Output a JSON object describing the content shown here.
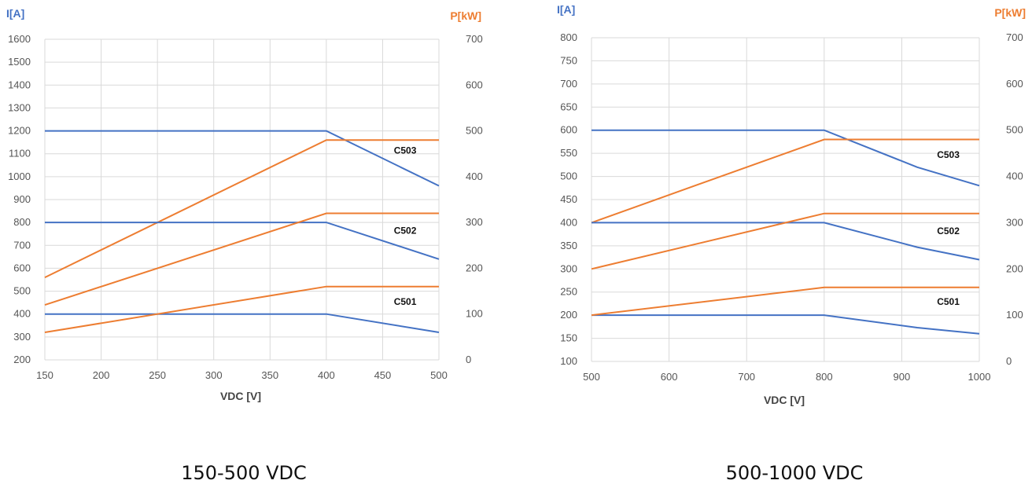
{
  "colors": {
    "current": "#4472C4",
    "power": "#ED7D31",
    "grid": "#d9d9d9"
  },
  "chart_data": [
    {
      "type": "line",
      "caption": "150-500 VDC",
      "xlabel": "VDC [V]",
      "ylabel_left": "I[A]",
      "ylabel_right": "P[kW]",
      "xlim": [
        150,
        500
      ],
      "xticks": [
        150,
        200,
        250,
        300,
        350,
        400,
        450,
        500
      ],
      "ylim_left": [
        200,
        1600
      ],
      "yticks_left": [
        200,
        300,
        400,
        500,
        600,
        700,
        800,
        900,
        1000,
        1100,
        1200,
        1300,
        1400,
        1500,
        1600
      ],
      "ylim_right": [
        0,
        700
      ],
      "yticks_right": [
        0,
        100,
        200,
        300,
        400,
        500,
        600,
        700
      ],
      "grid": true,
      "series": [
        {
          "name": "C503",
          "axis": "left",
          "kind": "current",
          "x": [
            150,
            400,
            500
          ],
          "y": [
            1200,
            1200,
            960
          ]
        },
        {
          "name": "C503",
          "axis": "right",
          "kind": "power",
          "x": [
            150,
            400,
            500
          ],
          "y": [
            180,
            480,
            480
          ]
        },
        {
          "name": "C502",
          "axis": "left",
          "kind": "current",
          "x": [
            150,
            400,
            500
          ],
          "y": [
            800,
            800,
            640
          ]
        },
        {
          "name": "C502",
          "axis": "right",
          "kind": "power",
          "x": [
            150,
            400,
            500
          ],
          "y": [
            120,
            320,
            320
          ]
        },
        {
          "name": "C501",
          "axis": "left",
          "kind": "current",
          "x": [
            150,
            400,
            500
          ],
          "y": [
            400,
            400,
            320
          ]
        },
        {
          "name": "C501",
          "axis": "right",
          "kind": "power",
          "x": [
            150,
            400,
            500
          ],
          "y": [
            60,
            160,
            160
          ]
        }
      ],
      "annotations": [
        {
          "text": "C503",
          "x": 470,
          "y_left": 1100
        },
        {
          "text": "C502",
          "x": 470,
          "y_left": 750
        },
        {
          "text": "C501",
          "x": 470,
          "y_left": 440
        }
      ]
    },
    {
      "type": "line",
      "caption": "500-1000 VDC",
      "xlabel": "VDC [V]",
      "ylabel_left": "I[A]",
      "ylabel_right": "P[kW]",
      "xlim": [
        500,
        1000
      ],
      "xticks": [
        500,
        600,
        700,
        800,
        900,
        1000
      ],
      "ylim_left": [
        100,
        800
      ],
      "yticks_left": [
        100,
        150,
        200,
        250,
        300,
        350,
        400,
        450,
        500,
        550,
        600,
        650,
        700,
        750,
        800
      ],
      "ylim_right": [
        0,
        700
      ],
      "yticks_right": [
        0,
        100,
        200,
        300,
        400,
        500,
        600,
        700
      ],
      "grid": true,
      "series": [
        {
          "name": "C503",
          "axis": "left",
          "kind": "current",
          "x": [
            500,
            800,
            920,
            1000
          ],
          "y": [
            600,
            600,
            520,
            480
          ]
        },
        {
          "name": "C503",
          "axis": "right",
          "kind": "power",
          "x": [
            500,
            800,
            1000
          ],
          "y": [
            300,
            480,
            480
          ]
        },
        {
          "name": "C502",
          "axis": "left",
          "kind": "current",
          "x": [
            500,
            800,
            920,
            1000
          ],
          "y": [
            400,
            400,
            347,
            320
          ]
        },
        {
          "name": "C502",
          "axis": "right",
          "kind": "power",
          "x": [
            500,
            800,
            1000
          ],
          "y": [
            200,
            320,
            320
          ]
        },
        {
          "name": "C501",
          "axis": "left",
          "kind": "current",
          "x": [
            500,
            800,
            920,
            1000
          ],
          "y": [
            200,
            200,
            173,
            160
          ]
        },
        {
          "name": "C501",
          "axis": "right",
          "kind": "power",
          "x": [
            500,
            800,
            1000
          ],
          "y": [
            100,
            160,
            160
          ]
        }
      ],
      "annotations": [
        {
          "text": "C503",
          "x": 960,
          "y_left": 540
        },
        {
          "text": "C502",
          "x": 960,
          "y_left": 375
        },
        {
          "text": "C501",
          "x": 960,
          "y_left": 222
        }
      ]
    }
  ]
}
